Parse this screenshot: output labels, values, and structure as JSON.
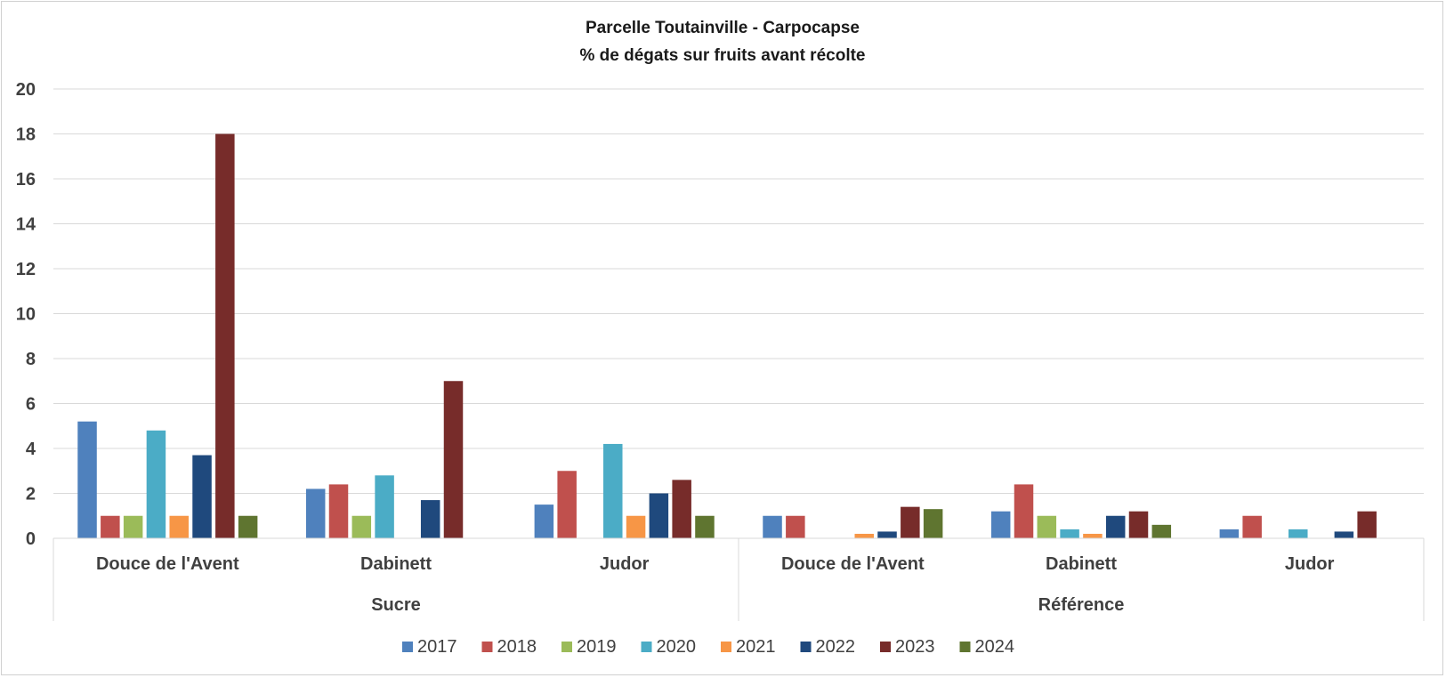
{
  "chart_data": {
    "type": "bar",
    "title": "Parcelle Toutainville - Carpocapse",
    "subtitle": "% de dégats sur fruits avant récolte",
    "ylim": [
      0,
      20
    ],
    "yticks": [
      0,
      2,
      4,
      6,
      8,
      10,
      12,
      14,
      16,
      18,
      20
    ],
    "grid": true,
    "legend_position": "bottom",
    "groups": [
      {
        "label": "Sucre",
        "categories": [
          "Douce de l'Avent",
          "Dabinett",
          "Judor"
        ]
      },
      {
        "label": "Référence",
        "categories": [
          "Douce de l'Avent",
          "Dabinett",
          "Judor"
        ]
      }
    ],
    "categories": [
      "Douce de l'Avent",
      "Dabinett",
      "Judor",
      "Douce de l'Avent",
      "Dabinett",
      "Judor"
    ],
    "series": [
      {
        "name": "2017",
        "color": "#4f81bd",
        "values": [
          5.2,
          2.2,
          1.5,
          1.0,
          1.2,
          0.4
        ]
      },
      {
        "name": "2018",
        "color": "#c0504d",
        "values": [
          1.0,
          2.4,
          3.0,
          1.0,
          2.4,
          1.0
        ]
      },
      {
        "name": "2019",
        "color": "#9bbb59",
        "values": [
          1.0,
          1.0,
          null,
          null,
          1.0,
          null
        ]
      },
      {
        "name": "2020",
        "color": "#4bacc6",
        "values": [
          4.8,
          2.8,
          4.2,
          null,
          0.4,
          0.4
        ]
      },
      {
        "name": "2021",
        "color": "#f79646",
        "values": [
          1.0,
          null,
          1.0,
          0.2,
          0.2,
          null
        ]
      },
      {
        "name": "2022",
        "color": "#1f497d",
        "values": [
          3.7,
          1.7,
          2.0,
          0.3,
          1.0,
          0.3
        ]
      },
      {
        "name": "2023",
        "color": "#772c2a",
        "values": [
          18.0,
          7.0,
          2.6,
          1.4,
          1.2,
          1.2
        ]
      },
      {
        "name": "2024",
        "color": "#5f7530",
        "values": [
          1.0,
          null,
          1.0,
          1.3,
          0.6,
          null
        ]
      }
    ]
  }
}
